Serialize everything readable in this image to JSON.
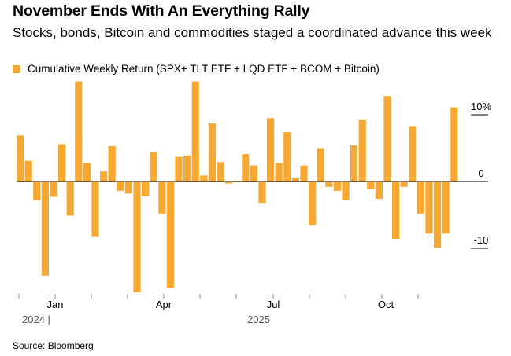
{
  "title": "November Ends With An Everything Rally",
  "subtitle": "Stocks, bonds, Bitcoin and commodities staged a coordinated advance this week",
  "source": "Source: Bloomberg",
  "colors": {
    "bar": "#f7a832",
    "zero_line": "#000000",
    "gridline": "#000000"
  },
  "chart_data": {
    "type": "bar",
    "title": "November Ends With An Everything Rally",
    "series": [
      {
        "name": "Cumulative Weekly Return (SPX+ TLT ETF + LQD ETF + BCOM + Bitcoin)",
        "values": [
          6.9,
          3.1,
          -2.8,
          -14.1,
          -2.3,
          5.6,
          -5.1,
          15.0,
          2.7,
          -8.2,
          1.5,
          5.3,
          -1.4,
          -1.8,
          -16.6,
          -2.2,
          4.4,
          -4.8,
          -15.9,
          3.7,
          3.9,
          15.0,
          0.9,
          8.7,
          2.9,
          -0.3,
          0.1,
          4.1,
          2.4,
          -3.2,
          9.5,
          2.7,
          7.4,
          0.5,
          2.4,
          -6.5,
          5.0,
          -0.8,
          -1.4,
          -2.8,
          5.4,
          9.2,
          -1.1,
          -2.6,
          12.8,
          -8.6,
          -0.8,
          8.3,
          -4.8,
          -7.8,
          -9.9,
          -7.8,
          11.1
        ]
      }
    ],
    "yaxis": {
      "ticks": [
        10,
        0,
        -10
      ],
      "tick_labels": [
        "10%",
        "0",
        "-10"
      ],
      "ylim": [
        -16.6,
        15.0
      ],
      "position": "right"
    },
    "xaxis": {
      "month_labels": [
        "Jan",
        "Apr",
        "Jul",
        "Oct"
      ],
      "year_labels": [
        "2024 |",
        "2025"
      ]
    },
    "legend": [
      "Cumulative Weekly Return (SPX+ TLT ETF + LQD ETF + BCOM + Bitcoin)"
    ],
    "grid": false
  }
}
